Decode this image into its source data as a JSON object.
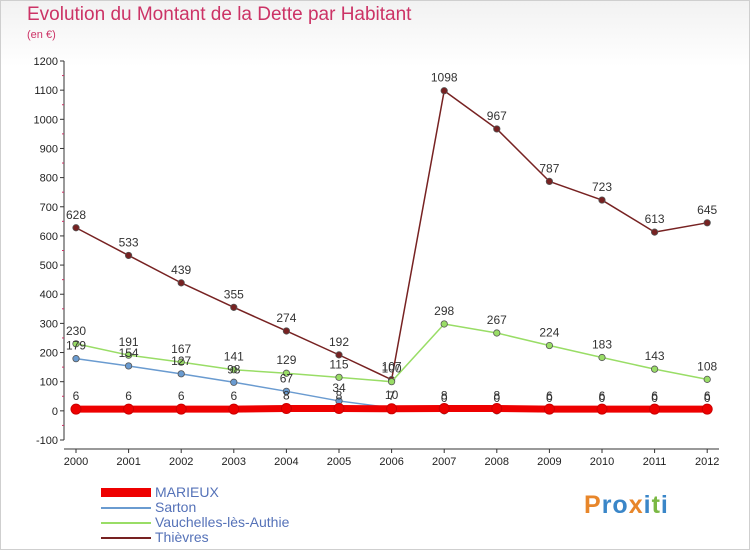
{
  "header": {
    "title": "Evolution du Montant de la Dette par Habitant",
    "subtitle": "(en €)"
  },
  "logo": {
    "letters": [
      "P",
      "r",
      "o",
      "x",
      "i",
      "t",
      "i"
    ]
  },
  "colors": {
    "title": "#cc3366",
    "legend_text": "#5572b8",
    "logo": [
      "#e8862a",
      "#3a86c8",
      "#3a86c8",
      "#e8862a",
      "#3a86c8",
      "#7ab843",
      "#3a86c8"
    ]
  },
  "chart_data": {
    "type": "line",
    "title": "Evolution du Montant de la Dette par Habitant",
    "subtitle": "(en €)",
    "xlabel": "",
    "ylabel": "",
    "x": [
      "2000",
      "2001",
      "2002",
      "2003",
      "2004",
      "2005",
      "2006",
      "2007",
      "2008",
      "2009",
      "2010",
      "2011",
      "2012"
    ],
    "ylim": [
      -100,
      1200
    ],
    "yticks": [
      -100,
      0,
      100,
      200,
      300,
      400,
      500,
      600,
      700,
      800,
      900,
      1000,
      1100,
      1200
    ],
    "grid": false,
    "legend_position": "bottom-left",
    "series": [
      {
        "name": "MARIEUX",
        "color": "#ee0000",
        "values": [
          6,
          6,
          6,
          6,
          8,
          8,
          7,
          8,
          8,
          6,
          6,
          6,
          6
        ],
        "labels": [
          "6",
          "6",
          "6",
          "6",
          "8",
          "8",
          "7",
          "8",
          "8",
          "6",
          "6",
          "6",
          "6"
        ]
      },
      {
        "name": "Sarton",
        "color": "#6a9bd0",
        "values": [
          179,
          154,
          127,
          98,
          67,
          34,
          10,
          0,
          0,
          0,
          0,
          0,
          0
        ],
        "labels": [
          "179",
          "154",
          "127",
          "98",
          "67",
          "34",
          "10",
          "0",
          "0",
          "0",
          "0",
          "0",
          "0"
        ]
      },
      {
        "name": "Vauchelles-lès-Authie",
        "color": "#99dd66",
        "values": [
          230,
          191,
          167,
          141,
          129,
          115,
          100,
          298,
          267,
          224,
          183,
          143,
          108
        ],
        "labels": [
          "230",
          "191",
          "167",
          "141",
          "129",
          "115",
          "100",
          "298",
          "267",
          "224",
          "183",
          "143",
          "108"
        ]
      },
      {
        "name": "Thièvres",
        "color": "#772222",
        "values": [
          628,
          533,
          439,
          355,
          274,
          192,
          107,
          1098,
          967,
          787,
          723,
          613,
          645
        ],
        "labels": [
          "628",
          "533",
          "439",
          "355",
          "274",
          "192",
          "107",
          "1098",
          "967",
          "787",
          "723",
          "613",
          "645"
        ]
      }
    ]
  }
}
